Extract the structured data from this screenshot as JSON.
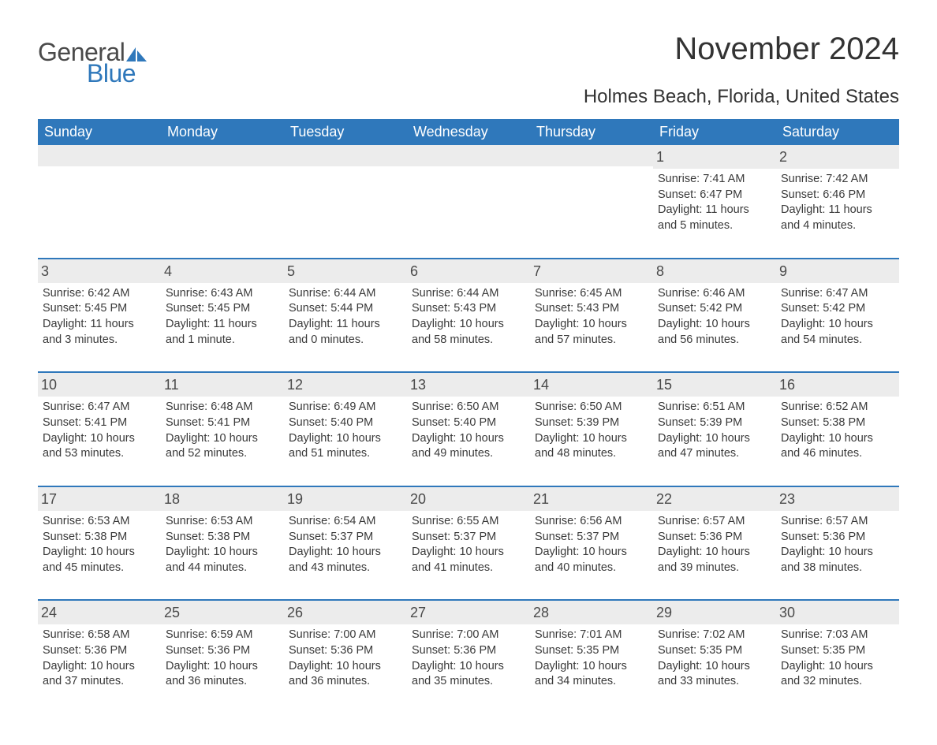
{
  "logo": {
    "text1": "General",
    "text2": "Blue",
    "icon_color": "#2f78bb"
  },
  "title": "November 2024",
  "location": "Holmes Beach, Florida, United States",
  "colors": {
    "header_bg": "#2f78bb",
    "header_fg": "#ffffff",
    "daynum_bg": "#ececec",
    "border": "#2f78bb",
    "body_fg": "#333333",
    "bg": "#ffffff"
  },
  "typography": {
    "title_fontsize": 40,
    "location_fontsize": 24,
    "dow_fontsize": 18,
    "daynum_fontsize": 18,
    "body_fontsize": 14.5
  },
  "days_of_week": [
    "Sunday",
    "Monday",
    "Tuesday",
    "Wednesday",
    "Thursday",
    "Friday",
    "Saturday"
  ],
  "weeks": [
    [
      {
        "day": "",
        "sunrise": "",
        "sunset": "",
        "daylight": ""
      },
      {
        "day": "",
        "sunrise": "",
        "sunset": "",
        "daylight": ""
      },
      {
        "day": "",
        "sunrise": "",
        "sunset": "",
        "daylight": ""
      },
      {
        "day": "",
        "sunrise": "",
        "sunset": "",
        "daylight": ""
      },
      {
        "day": "",
        "sunrise": "",
        "sunset": "",
        "daylight": ""
      },
      {
        "day": "1",
        "sunrise": "Sunrise: 7:41 AM",
        "sunset": "Sunset: 6:47 PM",
        "daylight": "Daylight: 11 hours and 5 minutes."
      },
      {
        "day": "2",
        "sunrise": "Sunrise: 7:42 AM",
        "sunset": "Sunset: 6:46 PM",
        "daylight": "Daylight: 11 hours and 4 minutes."
      }
    ],
    [
      {
        "day": "3",
        "sunrise": "Sunrise: 6:42 AM",
        "sunset": "Sunset: 5:45 PM",
        "daylight": "Daylight: 11 hours and 3 minutes."
      },
      {
        "day": "4",
        "sunrise": "Sunrise: 6:43 AM",
        "sunset": "Sunset: 5:45 PM",
        "daylight": "Daylight: 11 hours and 1 minute."
      },
      {
        "day": "5",
        "sunrise": "Sunrise: 6:44 AM",
        "sunset": "Sunset: 5:44 PM",
        "daylight": "Daylight: 11 hours and 0 minutes."
      },
      {
        "day": "6",
        "sunrise": "Sunrise: 6:44 AM",
        "sunset": "Sunset: 5:43 PM",
        "daylight": "Daylight: 10 hours and 58 minutes."
      },
      {
        "day": "7",
        "sunrise": "Sunrise: 6:45 AM",
        "sunset": "Sunset: 5:43 PM",
        "daylight": "Daylight: 10 hours and 57 minutes."
      },
      {
        "day": "8",
        "sunrise": "Sunrise: 6:46 AM",
        "sunset": "Sunset: 5:42 PM",
        "daylight": "Daylight: 10 hours and 56 minutes."
      },
      {
        "day": "9",
        "sunrise": "Sunrise: 6:47 AM",
        "sunset": "Sunset: 5:42 PM",
        "daylight": "Daylight: 10 hours and 54 minutes."
      }
    ],
    [
      {
        "day": "10",
        "sunrise": "Sunrise: 6:47 AM",
        "sunset": "Sunset: 5:41 PM",
        "daylight": "Daylight: 10 hours and 53 minutes."
      },
      {
        "day": "11",
        "sunrise": "Sunrise: 6:48 AM",
        "sunset": "Sunset: 5:41 PM",
        "daylight": "Daylight: 10 hours and 52 minutes."
      },
      {
        "day": "12",
        "sunrise": "Sunrise: 6:49 AM",
        "sunset": "Sunset: 5:40 PM",
        "daylight": "Daylight: 10 hours and 51 minutes."
      },
      {
        "day": "13",
        "sunrise": "Sunrise: 6:50 AM",
        "sunset": "Sunset: 5:40 PM",
        "daylight": "Daylight: 10 hours and 49 minutes."
      },
      {
        "day": "14",
        "sunrise": "Sunrise: 6:50 AM",
        "sunset": "Sunset: 5:39 PM",
        "daylight": "Daylight: 10 hours and 48 minutes."
      },
      {
        "day": "15",
        "sunrise": "Sunrise: 6:51 AM",
        "sunset": "Sunset: 5:39 PM",
        "daylight": "Daylight: 10 hours and 47 minutes."
      },
      {
        "day": "16",
        "sunrise": "Sunrise: 6:52 AM",
        "sunset": "Sunset: 5:38 PM",
        "daylight": "Daylight: 10 hours and 46 minutes."
      }
    ],
    [
      {
        "day": "17",
        "sunrise": "Sunrise: 6:53 AM",
        "sunset": "Sunset: 5:38 PM",
        "daylight": "Daylight: 10 hours and 45 minutes."
      },
      {
        "day": "18",
        "sunrise": "Sunrise: 6:53 AM",
        "sunset": "Sunset: 5:38 PM",
        "daylight": "Daylight: 10 hours and 44 minutes."
      },
      {
        "day": "19",
        "sunrise": "Sunrise: 6:54 AM",
        "sunset": "Sunset: 5:37 PM",
        "daylight": "Daylight: 10 hours and 43 minutes."
      },
      {
        "day": "20",
        "sunrise": "Sunrise: 6:55 AM",
        "sunset": "Sunset: 5:37 PM",
        "daylight": "Daylight: 10 hours and 41 minutes."
      },
      {
        "day": "21",
        "sunrise": "Sunrise: 6:56 AM",
        "sunset": "Sunset: 5:37 PM",
        "daylight": "Daylight: 10 hours and 40 minutes."
      },
      {
        "day": "22",
        "sunrise": "Sunrise: 6:57 AM",
        "sunset": "Sunset: 5:36 PM",
        "daylight": "Daylight: 10 hours and 39 minutes."
      },
      {
        "day": "23",
        "sunrise": "Sunrise: 6:57 AM",
        "sunset": "Sunset: 5:36 PM",
        "daylight": "Daylight: 10 hours and 38 minutes."
      }
    ],
    [
      {
        "day": "24",
        "sunrise": "Sunrise: 6:58 AM",
        "sunset": "Sunset: 5:36 PM",
        "daylight": "Daylight: 10 hours and 37 minutes."
      },
      {
        "day": "25",
        "sunrise": "Sunrise: 6:59 AM",
        "sunset": "Sunset: 5:36 PM",
        "daylight": "Daylight: 10 hours and 36 minutes."
      },
      {
        "day": "26",
        "sunrise": "Sunrise: 7:00 AM",
        "sunset": "Sunset: 5:36 PM",
        "daylight": "Daylight: 10 hours and 36 minutes."
      },
      {
        "day": "27",
        "sunrise": "Sunrise: 7:00 AM",
        "sunset": "Sunset: 5:36 PM",
        "daylight": "Daylight: 10 hours and 35 minutes."
      },
      {
        "day": "28",
        "sunrise": "Sunrise: 7:01 AM",
        "sunset": "Sunset: 5:35 PM",
        "daylight": "Daylight: 10 hours and 34 minutes."
      },
      {
        "day": "29",
        "sunrise": "Sunrise: 7:02 AM",
        "sunset": "Sunset: 5:35 PM",
        "daylight": "Daylight: 10 hours and 33 minutes."
      },
      {
        "day": "30",
        "sunrise": "Sunrise: 7:03 AM",
        "sunset": "Sunset: 5:35 PM",
        "daylight": "Daylight: 10 hours and 32 minutes."
      }
    ]
  ]
}
